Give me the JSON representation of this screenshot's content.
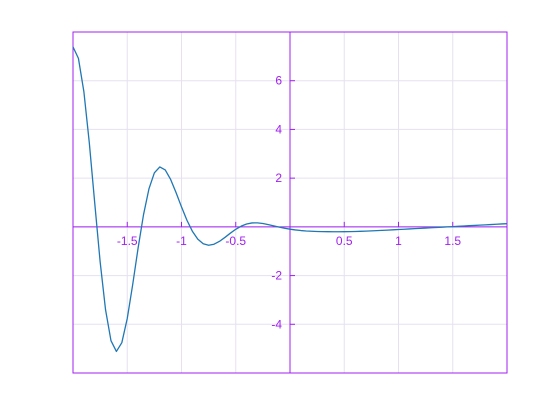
{
  "chart_data": {
    "type": "line",
    "title": "",
    "xlabel": "",
    "ylabel": "",
    "xlim": [
      -2,
      2
    ],
    "ylim": [
      -6,
      8
    ],
    "grid": true,
    "axis_color": "#a020f0",
    "grid_color": "#e6e0f0",
    "line_color": "#1f77b4",
    "x_ticks": [
      -1.5,
      -1,
      -0.5,
      0,
      0.5,
      1,
      1.5
    ],
    "x_tick_labels": [
      "-1.5",
      "-1",
      "-0.5",
      "",
      "0.5",
      "1",
      "1.5"
    ],
    "y_ticks": [
      -4,
      -2,
      2,
      4,
      6
    ],
    "y_tick_labels": [
      "-4",
      "-2",
      "2",
      "4",
      "6"
    ],
    "grid_x": [
      -1.5,
      -1,
      -0.5,
      0,
      0.5,
      1,
      1.5
    ],
    "grid_y": [
      -4,
      -2,
      0,
      2,
      4,
      6
    ],
    "series": [
      {
        "x": [
          -2.0,
          -1.95,
          -1.9,
          -1.85,
          -1.8,
          -1.75,
          -1.7,
          -1.65,
          -1.6,
          -1.55,
          -1.5,
          -1.45,
          -1.4,
          -1.35,
          -1.3,
          -1.25,
          -1.2,
          -1.15,
          -1.1,
          -1.05,
          -1.0,
          -0.95,
          -0.9,
          -0.85,
          -0.8,
          -0.75,
          -0.7,
          -0.65,
          -0.6,
          -0.55,
          -0.5,
          -0.45,
          -0.4,
          -0.35,
          -0.3,
          -0.25,
          -0.2,
          -0.15,
          -0.1,
          -0.05,
          0.0,
          0.05,
          0.1,
          0.15,
          0.2,
          0.25,
          0.3,
          0.35,
          0.4,
          0.45,
          0.5,
          0.55,
          0.6,
          0.65,
          0.7,
          0.75,
          0.8,
          0.85,
          0.9,
          0.95,
          1.0,
          1.05,
          1.1,
          1.15,
          1.2,
          1.25,
          1.3,
          1.35,
          1.4,
          1.45,
          1.5,
          1.55,
          1.6,
          1.65,
          1.7,
          1.75,
          1.8,
          1.85,
          1.9,
          1.95,
          2.0
        ],
        "y": [
          7.389,
          6.916,
          5.558,
          3.468,
          0.993,
          -1.431,
          -3.404,
          -4.674,
          -5.115,
          -4.756,
          -3.762,
          -2.374,
          -0.869,
          0.5,
          1.561,
          2.219,
          2.46,
          2.336,
          1.946,
          1.404,
          0.818,
          0.271,
          -0.179,
          -0.504,
          -0.693,
          -0.755,
          -0.713,
          -0.595,
          -0.434,
          -0.26,
          -0.099,
          0.03,
          0.117,
          0.161,
          0.164,
          0.137,
          0.092,
          0.04,
          -0.011,
          -0.057,
          -0.096,
          -0.127,
          -0.151,
          -0.169,
          -0.181,
          -0.19,
          -0.196,
          -0.199,
          -0.201,
          -0.201,
          -0.199,
          -0.196,
          -0.19,
          -0.183,
          -0.175,
          -0.165,
          -0.155,
          -0.144,
          -0.133,
          -0.121,
          -0.109,
          -0.097,
          -0.085,
          -0.073,
          -0.061,
          -0.049,
          -0.037,
          -0.025,
          -0.013,
          -0.001,
          0.011,
          0.023,
          0.035,
          0.047,
          0.059,
          0.071,
          0.083,
          0.095,
          0.107,
          0.119,
          0.131
        ]
      }
    ]
  }
}
